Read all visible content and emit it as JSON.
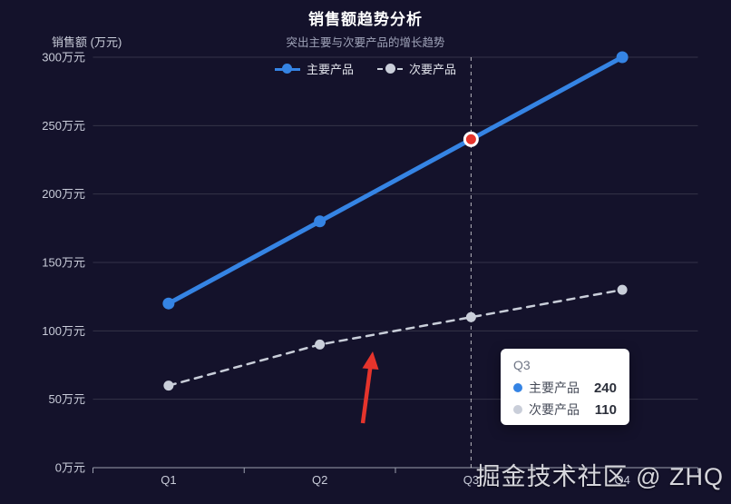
{
  "page": {
    "watermark": "掘金技术社区 @ ZHQ"
  },
  "colors": {
    "background": "#14122b",
    "primary_series": "#3584e4",
    "secondary_series": "#c9ced9",
    "highlight_point": "#e5342c",
    "annotation_arrow": "#e5342c",
    "axis_line": "#9b9fae",
    "gridline": "rgba(255,255,255,0.14)",
    "tooltip_background": "#ffffff"
  },
  "chart_data": {
    "type": "line",
    "title": "销售额趋势分析",
    "subtitle": "突出主要与次要产品的增长趋势",
    "y_axis_name": "销售额 (万元)",
    "categories": [
      "Q1",
      "Q2",
      "Q3",
      "Q4"
    ],
    "series": [
      {
        "name": "主要产品",
        "values": [
          120,
          180,
          240,
          300
        ],
        "color": "#3584e4",
        "style": "solid"
      },
      {
        "name": "次要产品",
        "values": [
          60,
          90,
          110,
          130
        ],
        "color": "#c9ced9",
        "style": "dashed"
      }
    ],
    "ylim": [
      0,
      300
    ],
    "y_ticks": [
      "0万元",
      "50万元",
      "100万元",
      "150万元",
      "200万元",
      "250万元",
      "300万元"
    ],
    "grid": true,
    "legend_position": "top-center",
    "highlight": {
      "category": "Q3",
      "series": "主要产品",
      "value": 240,
      "color": "#e5342c",
      "marker_line": "vertical-dashed"
    },
    "annotation_arrow": {
      "color": "#e5342c",
      "points_to": "次要产品"
    }
  },
  "legend": {
    "items": [
      {
        "label": "主要产品"
      },
      {
        "label": "次要产品"
      }
    ]
  },
  "tooltip": {
    "title": "Q3",
    "rows": [
      {
        "label": "主要产品",
        "value": "240"
      },
      {
        "label": "次要产品",
        "value": "110"
      }
    ]
  }
}
